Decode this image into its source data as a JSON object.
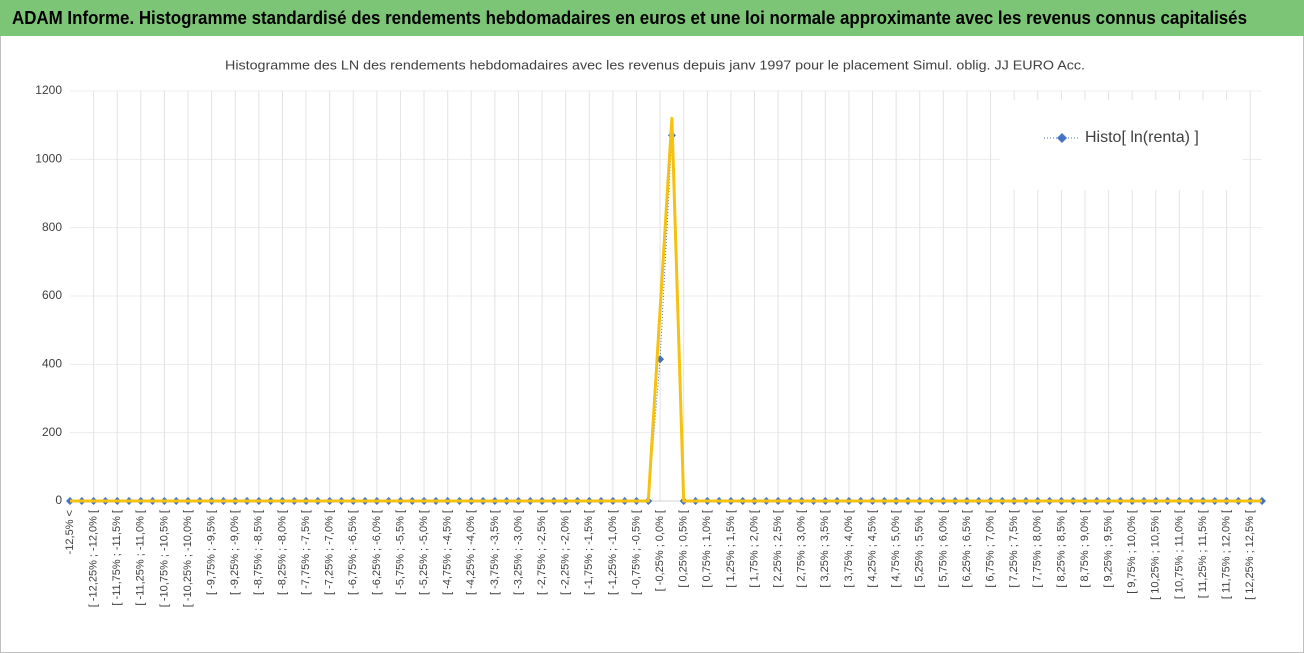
{
  "header": {
    "title": "ADAM Informe. Histogramme standardisé des rendements hebdomadaires en euros et une loi normale approximante avec les revenus connus capitalisés"
  },
  "chart_data": {
    "type": "line",
    "title": "Histogramme des LN des rendements hebdomadaires avec les revenus depuis janv 1997 pour le placement Simul. oblig. JJ EURO Acc.",
    "categories": [
      "-12,5% <",
      null,
      "[ -12,25% ; -12,0% [",
      null,
      "[ -11,75% ; -11,5% [",
      null,
      "[ -11,25% ; -11,0% [",
      null,
      "[ -10,75% ; -10,5% [",
      null,
      "[ -10,25% ; -10,0% [",
      null,
      "[ -9,75% ; -9,5% [",
      null,
      "[ -9,25% ; -9,0% [",
      null,
      "[ -8,75% ; -8,5% [",
      null,
      "[ -8,25% ; -8,0% [",
      null,
      "[ -7,75% ; -7,5% [",
      null,
      "[ -7,25% ; -7,0% [",
      null,
      "[ -6,75% ; -6,5% [",
      null,
      "[ -6,25% ; -6,0% [",
      null,
      "[ -5,75% ; -5,5% [",
      null,
      "[ -5,25% ; -5,0% [",
      null,
      "[ -4,75% ; -4,5% [",
      null,
      "[ -4,25% ; -4,0% [",
      null,
      "[ -3,75% ; -3,5% [",
      null,
      "[ -3,25% ; -3,0% [",
      null,
      "[ -2,75% ; -2,5% [",
      null,
      "[ -2,25% ; -2,0% [",
      null,
      "[ -1,75% ; -1,5% [",
      null,
      "[ -1,25% ; -1,0% [",
      null,
      "[ -0,75% ; -0,5% [",
      null,
      "[ -0,25% ; 0,0% [",
      null,
      "[ 0,25% ; 0,5% [",
      null,
      "[ 0,75% ; 1,0% [",
      null,
      "[ 1,25% ; 1,5% [",
      null,
      "[ 1,75% ; 2,0% [",
      null,
      "[ 2,25% ; 2,5% [",
      null,
      "[ 2,75% ; 3,0% [",
      null,
      "[ 3,25% ; 3,5% [",
      null,
      "[ 3,75% ; 4,0% [",
      null,
      "[ 4,25% ; 4,5% [",
      null,
      "[ 4,75% ; 5,0% [",
      null,
      "[ 5,25% ; 5,5% [",
      null,
      "[ 5,75% ; 6,0% [",
      null,
      "[ 6,25% ; 6,5% [",
      null,
      "[ 6,75% ; 7,0% [",
      null,
      "[ 7,25% ; 7,5% [",
      null,
      "[ 7,75% ; 8,0% [",
      null,
      "[ 8,25% ; 8,5% [",
      null,
      "[ 8,75% ; 9,0% [",
      null,
      "[ 9,25% ; 9,5% [",
      null,
      "[ 9,75% ; 10,0% [",
      null,
      "[ 10,25% ; 10,5% [",
      null,
      "[ 10,75% ; 11,0% [",
      null,
      "[ 11,25% ; 11,5% [",
      null,
      "[ 11,75% ; 12,0% [",
      null,
      "[ 12,25% ; 12,5% [",
      null
    ],
    "series": [
      {
        "name": "Histo[ ln(renta) ]",
        "color": "#4472c4",
        "marker": "diamond",
        "values": [
          0,
          0,
          0,
          0,
          0,
          0,
          0,
          0,
          0,
          0,
          0,
          0,
          0,
          0,
          0,
          0,
          0,
          0,
          0,
          0,
          0,
          0,
          0,
          0,
          0,
          0,
          0,
          0,
          0,
          0,
          0,
          0,
          0,
          0,
          0,
          0,
          0,
          0,
          0,
          0,
          0,
          0,
          0,
          0,
          0,
          0,
          0,
          0,
          0,
          0,
          415,
          1070,
          0,
          0,
          0,
          0,
          0,
          0,
          0,
          0,
          0,
          0,
          0,
          0,
          0,
          0,
          0,
          0,
          0,
          0,
          0,
          0,
          0,
          0,
          0,
          0,
          0,
          0,
          0,
          0,
          0,
          0,
          0,
          0,
          0,
          0,
          0,
          0,
          0,
          0,
          0,
          0,
          0,
          0,
          0,
          0,
          0,
          0,
          0,
          0,
          0,
          0
        ]
      },
      {
        "color": "#f5c211",
        "values": [
          0,
          0,
          0,
          0,
          0,
          0,
          0,
          0,
          0,
          0,
          0,
          0,
          0,
          0,
          0,
          0,
          0,
          0,
          0,
          0,
          0,
          0,
          0,
          0,
          0,
          0,
          0,
          0,
          0,
          0,
          0,
          0,
          0,
          0,
          0,
          0,
          0,
          0,
          0,
          0,
          0,
          0,
          0,
          0,
          0,
          0,
          0,
          0,
          0,
          0,
          560,
          1120,
          0,
          0,
          0,
          0,
          0,
          0,
          0,
          0,
          0,
          0,
          0,
          0,
          0,
          0,
          0,
          0,
          0,
          0,
          0,
          0,
          0,
          0,
          0,
          0,
          0,
          0,
          0,
          0,
          0,
          0,
          0,
          0,
          0,
          0,
          0,
          0,
          0,
          0,
          0,
          0,
          0,
          0,
          0,
          0,
          0,
          0,
          0,
          0,
          0,
          0
        ]
      }
    ],
    "ylim": [
      0,
      1200
    ],
    "yticks": [
      0,
      200,
      400,
      600,
      800,
      1000,
      1200
    ],
    "grid": true,
    "legend": "top-right"
  }
}
